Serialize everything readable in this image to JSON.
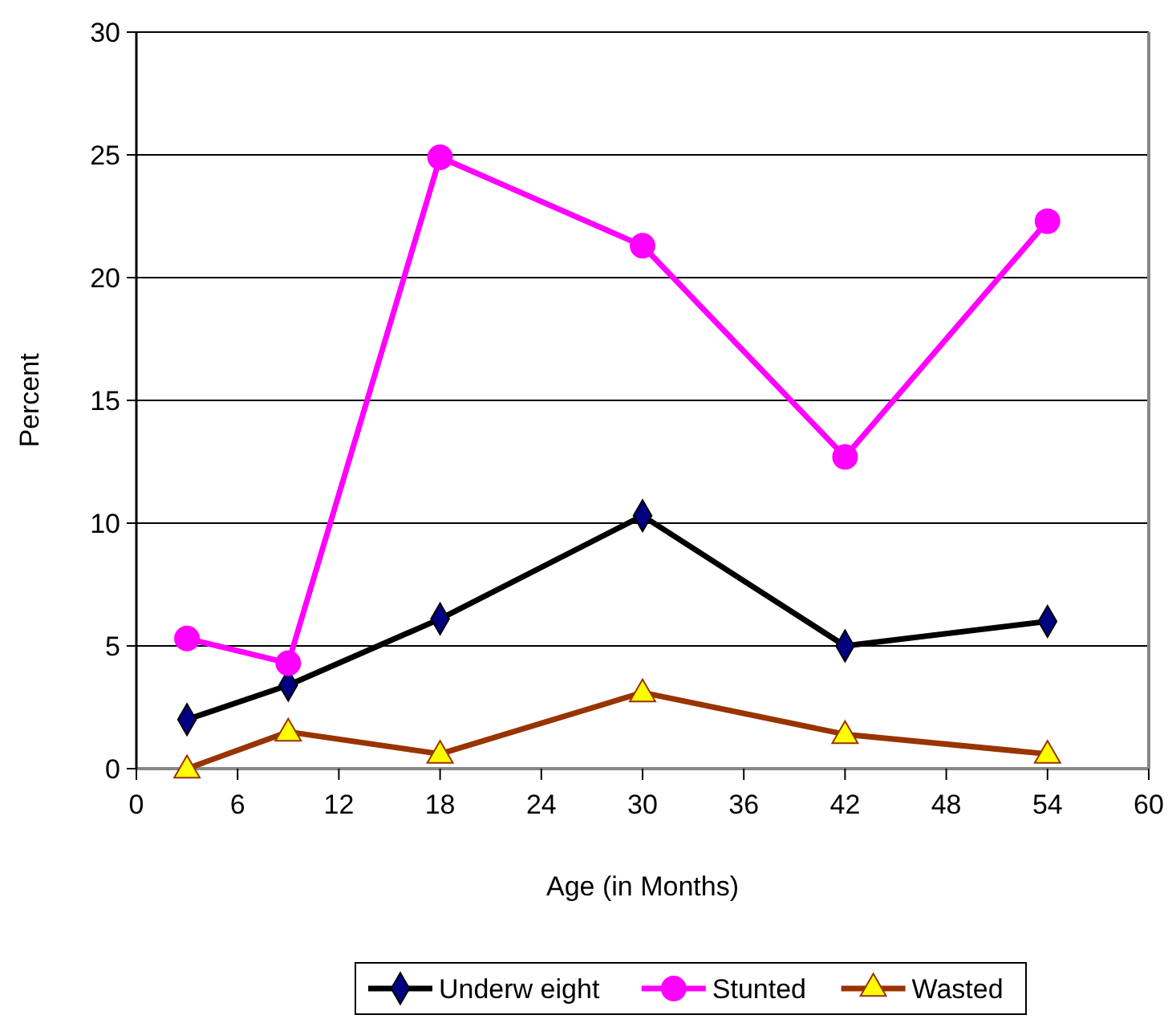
{
  "chart_data": {
    "type": "line",
    "xlabel": "Age (in Months)",
    "ylabel": "Percent",
    "x": [
      3,
      9,
      18,
      30,
      42,
      54
    ],
    "series": [
      {
        "name": "Underw eight",
        "color": "#000000",
        "marker": "diamond",
        "values": [
          2.0,
          3.4,
          6.1,
          10.3,
          5.0,
          6.0
        ]
      },
      {
        "name": "Stunted",
        "color": "#ff00ff",
        "marker": "circle",
        "values": [
          5.3,
          4.3,
          24.9,
          21.3,
          12.7,
          22.3
        ]
      },
      {
        "name": "Wasted",
        "color": "#993300",
        "marker": "triangle",
        "values": [
          0,
          1.5,
          0.6,
          3.1,
          1.4,
          0.6
        ]
      }
    ],
    "xlim": [
      0,
      60
    ],
    "xticks": [
      0,
      6,
      12,
      18,
      24,
      30,
      36,
      42,
      48,
      54,
      60
    ],
    "ylim": [
      0,
      30
    ],
    "yticks": [
      0,
      5,
      10,
      15,
      20,
      25,
      30
    ],
    "grid": "y",
    "legend": "bottom"
  }
}
